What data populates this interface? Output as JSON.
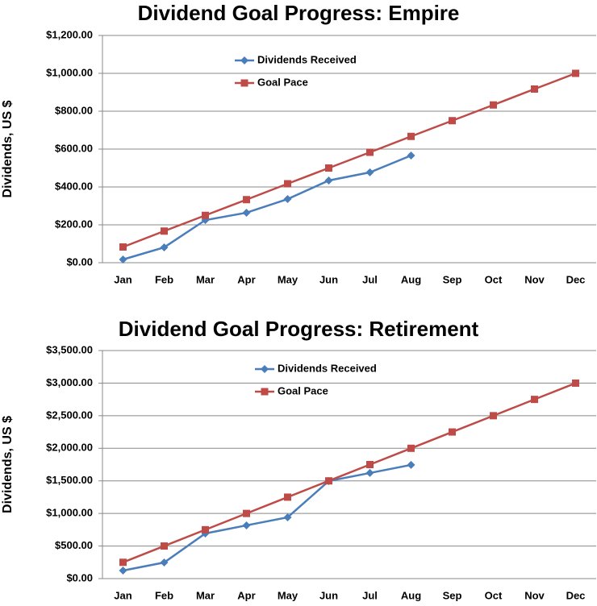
{
  "chart_data": [
    {
      "type": "line",
      "title": "Dividend Goal Progress: Empire",
      "y_label": "Dividends, US $",
      "categories": [
        "Jan",
        "Feb",
        "Mar",
        "Apr",
        "May",
        "Jun",
        "Jul",
        "Aug",
        "Sep",
        "Oct",
        "Nov",
        "Dec"
      ],
      "series": [
        {
          "name": "Dividends Received",
          "color": "#4a7ebb",
          "marker": "diamond",
          "values": [
            17,
            81,
            225,
            264,
            336,
            434,
            477,
            566,
            null,
            null,
            null,
            null
          ]
        },
        {
          "name": "Goal Pace",
          "color": "#be4b48",
          "marker": "square",
          "values": [
            83,
            167,
            250,
            333,
            417,
            500,
            583,
            667,
            750,
            833,
            917,
            1000
          ]
        }
      ],
      "ylim": [
        0,
        1200
      ],
      "yticks": [
        {
          "value": 0,
          "label": "$0.00"
        },
        {
          "value": 200,
          "label": "$200.00"
        },
        {
          "value": 400,
          "label": "$400.00"
        },
        {
          "value": 600,
          "label": "$600.00"
        },
        {
          "value": 800,
          "label": "$800.00"
        },
        {
          "value": 1000,
          "label": "$1,000.00"
        },
        {
          "value": 1200,
          "label": "$1,200.00"
        }
      ],
      "grid": true,
      "legend": "upper center"
    },
    {
      "type": "line",
      "title": "Dividend Goal Progress: Retirement",
      "y_label": "Dividends, US $",
      "categories": [
        "Jan",
        "Feb",
        "Mar",
        "Apr",
        "May",
        "Jun",
        "Jul",
        "Aug",
        "Sep",
        "Oct",
        "Nov",
        "Dec"
      ],
      "series": [
        {
          "name": "Dividends Received",
          "color": "#4a7ebb",
          "marker": "diamond",
          "values": [
            124,
            247,
            693,
            817,
            940,
            1497,
            1621,
            1745,
            null,
            null,
            null,
            null
          ]
        },
        {
          "name": "Goal Pace",
          "color": "#be4b48",
          "marker": "square",
          "values": [
            250,
            500,
            750,
            1000,
            1250,
            1500,
            1750,
            2000,
            2250,
            2500,
            2750,
            3000
          ]
        }
      ],
      "ylim": [
        0,
        3500
      ],
      "yticks": [
        {
          "value": 0,
          "label": "$0.00"
        },
        {
          "value": 500,
          "label": "$500.00"
        },
        {
          "value": 1000,
          "label": "$1,000.00"
        },
        {
          "value": 1500,
          "label": "$1,500.00"
        },
        {
          "value": 2000,
          "label": "$2,000.00"
        },
        {
          "value": 2500,
          "label": "$2,500.00"
        },
        {
          "value": 3000,
          "label": "$3,000.00"
        },
        {
          "value": 3500,
          "label": "$3,500.00"
        }
      ],
      "grid": true,
      "legend": "upper center"
    }
  ]
}
